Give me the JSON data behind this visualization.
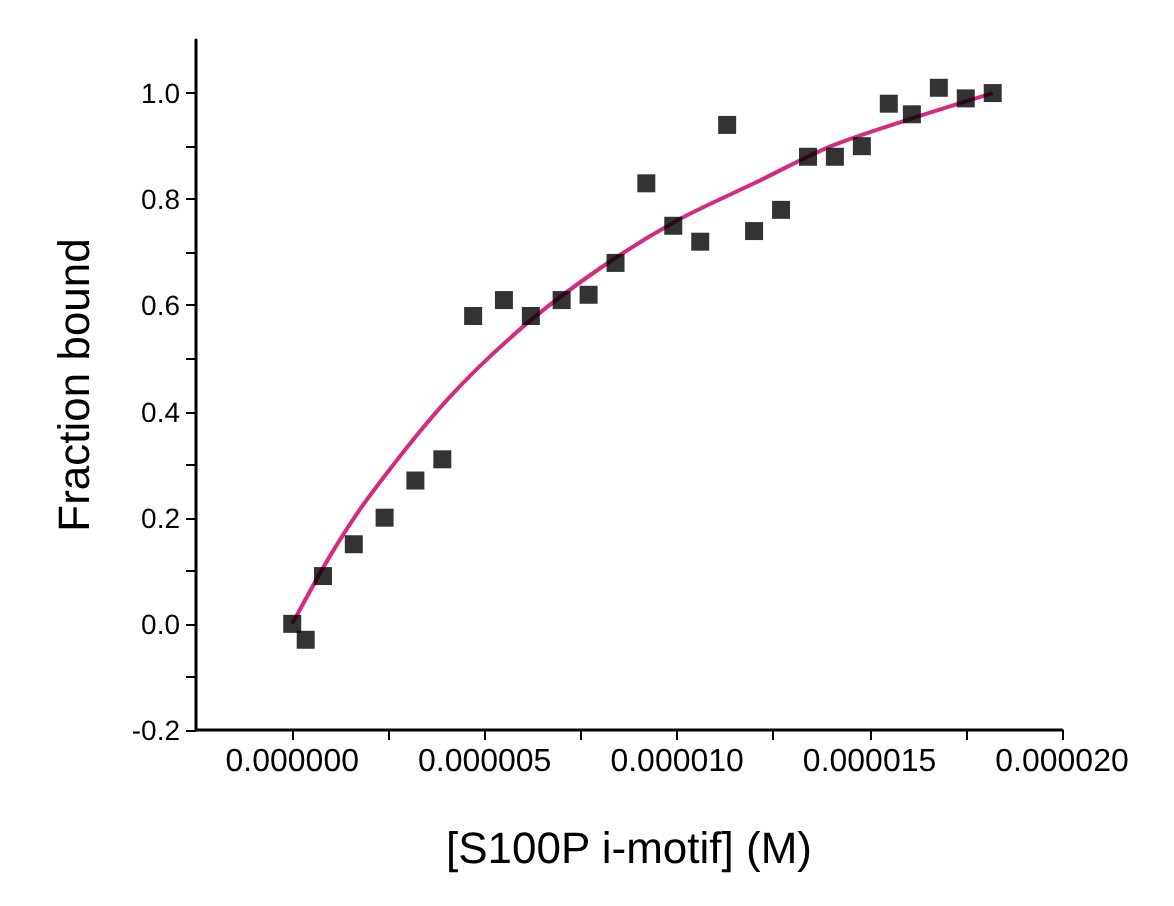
{
  "chart_data": {
    "type": "scatter",
    "xlabel": "[S100P i-motif] (M)",
    "ylabel": "Fraction bound",
    "xlim": [
      -2.5e-06,
      2e-05
    ],
    "xticks": [
      {
        "value": 0,
        "label": "0.000000"
      },
      {
        "value": 2.5e-06,
        "label": null
      },
      {
        "value": 5e-06,
        "label": "0.000005"
      },
      {
        "value": 7.5e-06,
        "label": null
      },
      {
        "value": 1e-05,
        "label": "0.000010"
      },
      {
        "value": 1.25e-05,
        "label": null
      },
      {
        "value": 1.5e-05,
        "label": "0.000015"
      },
      {
        "value": 1.75e-05,
        "label": null
      },
      {
        "value": 2e-05,
        "label": "0.000020"
      }
    ],
    "ylim": [
      -0.2,
      1.1
    ],
    "yticks": [
      {
        "value": -0.2,
        "label": "-0.2"
      },
      {
        "value": -0.1,
        "label": null
      },
      {
        "value": 0,
        "label": "0.0"
      },
      {
        "value": 0.1,
        "label": null
      },
      {
        "value": 0.2,
        "label": "0.2"
      },
      {
        "value": 0.3,
        "label": null
      },
      {
        "value": 0.4,
        "label": "0.4"
      },
      {
        "value": 0.5,
        "label": null
      },
      {
        "value": 0.6,
        "label": "0.6"
      },
      {
        "value": 0.7,
        "label": null
      },
      {
        "value": 0.8,
        "label": "0.8"
      },
      {
        "value": 0.9,
        "label": null
      },
      {
        "value": 1.0,
        "label": "1.0"
      }
    ],
    "series": [
      {
        "marker": "square",
        "color": "#000000",
        "x": [
          0,
          3.5e-07,
          8e-07,
          1.6e-06,
          2.4e-06,
          3.2e-06,
          3.9e-06,
          4.7e-06,
          5.5e-06,
          6.2e-06,
          7e-06,
          7.7e-06,
          8.4e-06,
          9.2e-06,
          9.9e-06,
          1.06e-05,
          1.13e-05,
          1.2e-05,
          1.27e-05,
          1.34e-05,
          1.41e-05,
          1.48e-05,
          1.55e-05,
          1.61e-05,
          1.68e-05,
          1.75e-05,
          1.82e-05
        ],
        "values": [
          0,
          -0.03,
          0.09,
          0.15,
          0.2,
          0.27,
          0.31,
          0.58,
          0.61,
          0.58,
          0.61,
          0.62,
          0.68,
          0.83,
          0.75,
          0.72,
          0.94,
          0.74,
          0.78,
          0.88,
          0.88,
          0.9,
          0.98,
          0.96,
          1.01,
          0.99,
          1.0
        ]
      },
      {
        "type": "line",
        "marker": "none",
        "color": "#d42a80",
        "x": [
          0,
          1e-06,
          2e-06,
          4e-06,
          6e-06,
          8e-06,
          1e-05,
          1.2e-05,
          1.4e-05,
          1.6e-05,
          1.82e-05
        ],
        "values": [
          0,
          0.13,
          0.24,
          0.42,
          0.56,
          0.67,
          0.76,
          0.83,
          0.9,
          0.95,
          1.0
        ]
      }
    ]
  }
}
